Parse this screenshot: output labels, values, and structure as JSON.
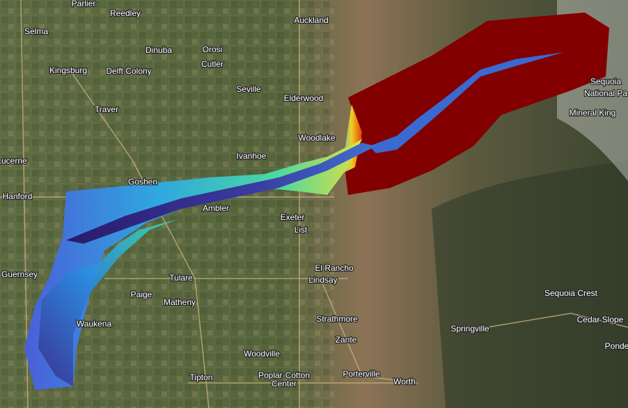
{
  "map": {
    "places": [
      {
        "name": "Parlier"
      },
      {
        "name": "Reedley"
      },
      {
        "name": "Auckland"
      },
      {
        "name": "Selma"
      },
      {
        "name": "Dinuba"
      },
      {
        "name": "Orosi"
      },
      {
        "name": "Kingsburg"
      },
      {
        "name": "Delft Colony"
      },
      {
        "name": "Cutler"
      },
      {
        "name": "Seville"
      },
      {
        "name": "Elderwood"
      },
      {
        "name": "Traver"
      },
      {
        "name": "Woodlake"
      },
      {
        "name": "Ivanhoe"
      },
      {
        "name": "Lucerne"
      },
      {
        "name": "Goshen"
      },
      {
        "name": "Hanford"
      },
      {
        "name": "Ambler"
      },
      {
        "name": "Exeter"
      },
      {
        "name": "List"
      },
      {
        "name": "El Rancho"
      },
      {
        "name": "Guernsey"
      },
      {
        "name": "Lindsay"
      },
      {
        "name": "Tulare"
      },
      {
        "name": "Paige"
      },
      {
        "name": "Matheny"
      },
      {
        "name": "Sequoia Crest"
      },
      {
        "name": "Mineral King"
      },
      {
        "name": "Strathmore"
      },
      {
        "name": "Cedar Slope"
      },
      {
        "name": "Waukena"
      },
      {
        "name": "Springville"
      },
      {
        "name": "Zante"
      },
      {
        "name": "Woodville"
      },
      {
        "name": "Tipton"
      },
      {
        "name": "Poplar-Cotton"
      },
      {
        "name": "Center"
      },
      {
        "name": "Porterville"
      },
      {
        "name": "Worth"
      },
      {
        "name": "Sequoia"
      },
      {
        "name": "National Pa"
      },
      {
        "name": "Ponder"
      }
    ]
  }
}
